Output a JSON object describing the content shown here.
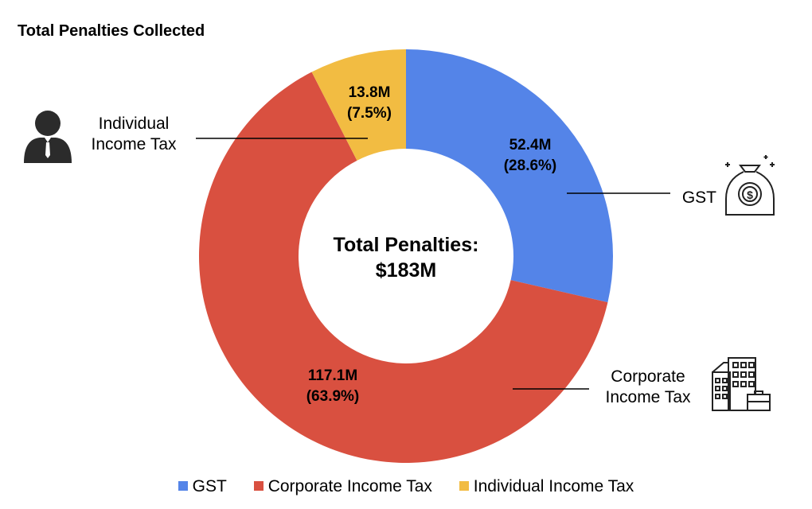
{
  "chart_data": {
    "type": "pie",
    "title": "Total Penalties Collected",
    "center_label": [
      "Total Penalties:",
      "$183M"
    ],
    "slices": [
      {
        "name": "GST",
        "value": 52.4,
        "value_label": "52.4M",
        "percent_label": "(28.6%)",
        "color": "#5484E8",
        "external_label": [
          "GST"
        ],
        "icon": "money-bag-icon"
      },
      {
        "name": "Corporate Income Tax",
        "value": 117.1,
        "value_label": "117.1M",
        "percent_label": "(63.9%)",
        "color": "#D95040",
        "external_label": [
          "Corporate",
          "Income Tax"
        ],
        "icon": "office-building-icon"
      },
      {
        "name": "Individual Income Tax",
        "value": 13.8,
        "value_label": "13.8M",
        "percent_label": "(7.5%)",
        "color": "#F2BC42",
        "external_label": [
          "Individual",
          "Income Tax"
        ],
        "icon": "person-icon"
      }
    ],
    "legend": [
      "GST",
      "Corporate Income Tax",
      "Individual Income Tax"
    ],
    "legend_placement": "bottom"
  }
}
